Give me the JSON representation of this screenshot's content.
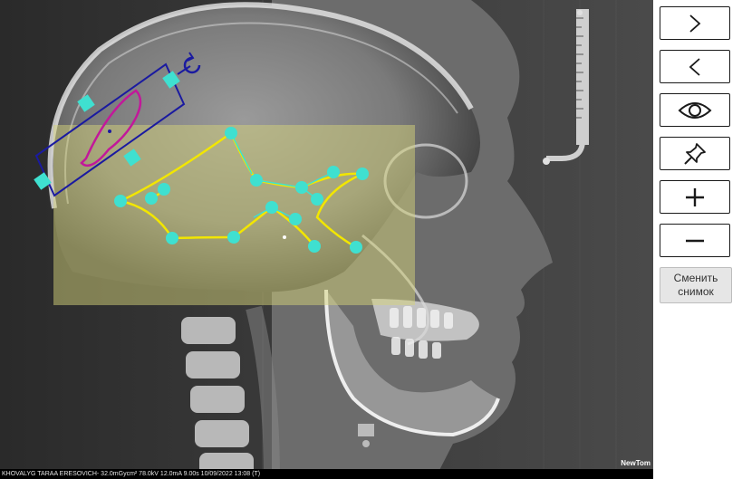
{
  "viewer": {
    "patient_info": "KHOVALYG TARAA ERESOVICH- 32.0mGycm² 78.0kV 12.0mA 9.00s 10/09/2022 13:08 (T)",
    "brand": "NewTom"
  },
  "toolbar": {
    "next_icon": "chevron-right-icon",
    "prev_icon": "chevron-left-icon",
    "visibility_icon": "eye-icon",
    "pin_icon": "pin-icon",
    "zoom_in_icon": "plus-icon",
    "zoom_out_icon": "minus-icon",
    "swap_image_label": "Сменить снимок"
  },
  "colors": {
    "landmark": "#3fe0d0",
    "trace_line": "#f2e600",
    "overlay_region": "#d4d27a",
    "ruler_frame": "#1a1aa0",
    "contour": "#c2189a"
  }
}
